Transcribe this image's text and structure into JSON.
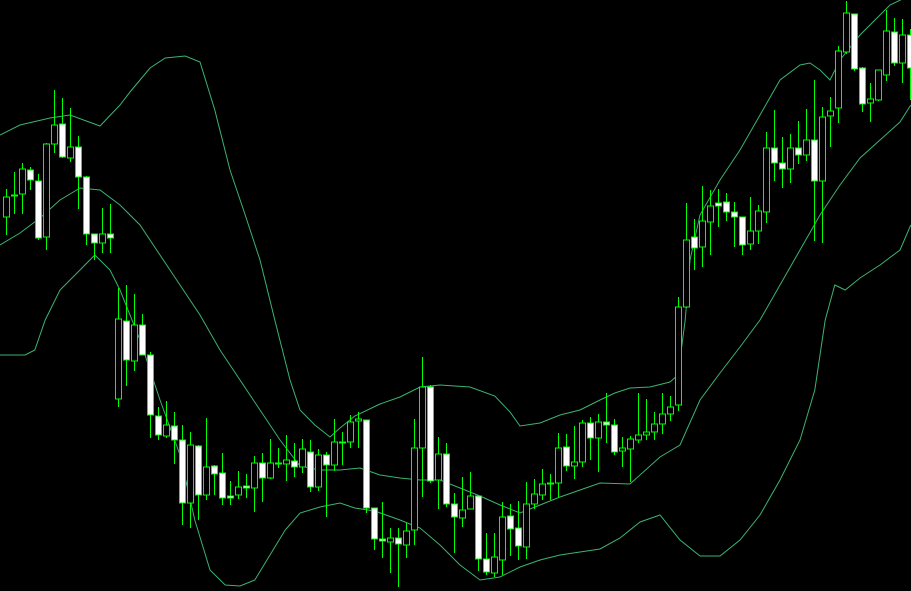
{
  "chart_data": {
    "type": "candlestick",
    "title": "",
    "xlabel": "",
    "ylabel": "",
    "grid": false,
    "indicator": "bollinger-bands",
    "colors": {
      "background": "#000000",
      "candle": "#00ff00",
      "bull_body": "#000000",
      "bear_body": "#ffffff",
      "bands": "#3cb371"
    },
    "ohlc_format": [
      "open",
      "high",
      "low",
      "close"
    ],
    "candles": [
      [
        383,
        411,
        365,
        403
      ],
      [
        404,
        428,
        386,
        405
      ],
      [
        406,
        437,
        386,
        431
      ],
      [
        430,
        433,
        410,
        420
      ],
      [
        419,
        426,
        360,
        362
      ],
      [
        363,
        457,
        350,
        456
      ],
      [
        456,
        510,
        447,
        475
      ],
      [
        476,
        502,
        442,
        443
      ],
      [
        442,
        492,
        438,
        453
      ],
      [
        453,
        464,
        391,
        423
      ],
      [
        423,
        424,
        355,
        366
      ],
      [
        366,
        366,
        340,
        357
      ],
      [
        357,
        392,
        347,
        366
      ],
      [
        366,
        396,
        347,
        362
      ],
      [
        201,
        312,
        193,
        281
      ],
      [
        279,
        315,
        214,
        240
      ],
      [
        239,
        306,
        229,
        275
      ],
      [
        275,
        286,
        245,
        245
      ],
      [
        245,
        248,
        162,
        185
      ],
      [
        184,
        193,
        160,
        165
      ],
      [
        164,
        199,
        162,
        175
      ],
      [
        174,
        188,
        136,
        160
      ],
      [
        160,
        175,
        75,
        97
      ],
      [
        97,
        168,
        72,
        155
      ],
      [
        154,
        155,
        80,
        105
      ],
      [
        105,
        182,
        100,
        133
      ],
      [
        134,
        135,
        105,
        126
      ],
      [
        127,
        147,
        95,
        102
      ],
      [
        104,
        119,
        95,
        102
      ],
      [
        105,
        129,
        101,
        113
      ],
      [
        114,
        126,
        102,
        112
      ],
      [
        112,
        144,
        88,
        137
      ],
      [
        137,
        147,
        98,
        122
      ],
      [
        122,
        161,
        121,
        137
      ],
      [
        137,
        152,
        132,
        137
      ],
      [
        136,
        165,
        119,
        140
      ],
      [
        139,
        157,
        123,
        133
      ],
      [
        133,
        161,
        127,
        151
      ],
      [
        148,
        160,
        108,
        113
      ],
      [
        113,
        151,
        109,
        145
      ],
      [
        145,
        148,
        83,
        135
      ],
      [
        135,
        181,
        129,
        158
      ],
      [
        158,
        168,
        135,
        158
      ],
      [
        158,
        185,
        152,
        178
      ],
      [
        179,
        188,
        152,
        181
      ],
      [
        180,
        180,
        87,
        92
      ],
      [
        92,
        92,
        50,
        61
      ],
      [
        61,
        98,
        42,
        59
      ],
      [
        58,
        72,
        27,
        62
      ],
      [
        62,
        72,
        13,
        56
      ],
      [
        55,
        77,
        42,
        69
      ],
      [
        70,
        181,
        55,
        152
      ],
      [
        152,
        243,
        103,
        213
      ],
      [
        213,
        215,
        117,
        119
      ],
      [
        120,
        163,
        91,
        146
      ],
      [
        146,
        157,
        93,
        96
      ],
      [
        96,
        107,
        47,
        83
      ],
      [
        82,
        123,
        73,
        90
      ],
      [
        91,
        128,
        91,
        104
      ],
      [
        104,
        104,
        29,
        41
      ],
      [
        41,
        67,
        25,
        28
      ],
      [
        27,
        67,
        23,
        43
      ],
      [
        40,
        98,
        25,
        83
      ],
      [
        84,
        96,
        44,
        71
      ],
      [
        72,
        99,
        40,
        54
      ],
      [
        53,
        118,
        41,
        96
      ],
      [
        96,
        121,
        91,
        106
      ],
      [
        105,
        131,
        100,
        116
      ],
      [
        117,
        126,
        100,
        117
      ],
      [
        117,
        167,
        103,
        152
      ],
      [
        153,
        166,
        129,
        134
      ],
      [
        134,
        174,
        121,
        138
      ],
      [
        138,
        180,
        133,
        177
      ],
      [
        177,
        183,
        140,
        162
      ],
      [
        162,
        186,
        128,
        178
      ],
      [
        178,
        207,
        157,
        175
      ],
      [
        175,
        181,
        145,
        148
      ],
      [
        149,
        163,
        133,
        152
      ],
      [
        151,
        164,
        118,
        161
      ],
      [
        160,
        207,
        157,
        165
      ],
      [
        165,
        201,
        160,
        168
      ],
      [
        168,
        188,
        160,
        176
      ],
      [
        176,
        207,
        166,
        186
      ],
      [
        186,
        204,
        179,
        193
      ],
      [
        195,
        303,
        189,
        293
      ],
      [
        293,
        397,
        292,
        360
      ],
      [
        363,
        381,
        330,
        352
      ],
      [
        353,
        414,
        333,
        379
      ],
      [
        378,
        410,
        345,
        394
      ],
      [
        397,
        411,
        373,
        394
      ],
      [
        398,
        407,
        379,
        388
      ],
      [
        388,
        398,
        353,
        383
      ],
      [
        383,
        383,
        345,
        355
      ],
      [
        356,
        403,
        350,
        369
      ],
      [
        369,
        395,
        356,
        389
      ],
      [
        388,
        468,
        377,
        452
      ],
      [
        452,
        490,
        419,
        437
      ],
      [
        437,
        463,
        412,
        431
      ],
      [
        431,
        466,
        417,
        452
      ],
      [
        452,
        479,
        436,
        445
      ],
      [
        445,
        491,
        439,
        460
      ],
      [
        460,
        520,
        359,
        419
      ],
      [
        419,
        493,
        357,
        483
      ],
      [
        484,
        503,
        453,
        489
      ],
      [
        492,
        554,
        477,
        549
      ],
      [
        548,
        599,
        546,
        587
      ],
      [
        586,
        586,
        529,
        531
      ],
      [
        532,
        533,
        488,
        496
      ],
      [
        497,
        517,
        478,
        501
      ],
      [
        500,
        530,
        499,
        530
      ],
      [
        525,
        590,
        519,
        569
      ],
      [
        568,
        582,
        534,
        537
      ],
      [
        537,
        581,
        517,
        565
      ],
      [
        565,
        571,
        500,
        532
      ]
    ],
    "bands": {
      "upper": [
        [
          -0.75,
          465
        ],
        [
          1.75,
          475
        ],
        [
          5.5,
          482
        ],
        [
          8,
          485
        ],
        [
          11.75,
          474
        ],
        [
          14.25,
          495
        ],
        [
          15.5,
          508
        ],
        [
          18,
          532
        ],
        [
          19.9,
          542
        ],
        [
          22.4,
          544
        ],
        [
          24.25,
          538
        ],
        [
          26.1,
          490
        ],
        [
          28,
          430
        ],
        [
          29.9,
          385
        ],
        [
          31.75,
          340
        ],
        [
          33.6,
          280
        ],
        [
          35.5,
          220
        ],
        [
          36.75,
          190
        ],
        [
          38.6,
          175
        ],
        [
          40.5,
          163
        ],
        [
          41.75,
          172
        ],
        [
          43.6,
          184
        ],
        [
          46.75,
          196
        ],
        [
          49.25,
          203
        ],
        [
          51.75,
          213
        ],
        [
          54.25,
          215
        ],
        [
          58,
          213
        ],
        [
          61.1,
          204
        ],
        [
          63,
          188
        ],
        [
          64.25,
          174
        ],
        [
          66.75,
          177
        ],
        [
          69.25,
          185
        ],
        [
          71.75,
          190
        ],
        [
          74.25,
          200
        ],
        [
          76.1,
          207
        ],
        [
          78,
          212
        ],
        [
          80.5,
          213
        ],
        [
          83,
          218
        ],
        [
          84,
          225
        ],
        [
          84.9,
          280
        ],
        [
          85.5,
          340
        ],
        [
          86.75,
          385
        ],
        [
          89.25,
          420
        ],
        [
          91.75,
          450
        ],
        [
          94.25,
          485
        ],
        [
          96.75,
          520
        ],
        [
          99.25,
          535
        ],
        [
          100.5,
          537
        ],
        [
          101.75,
          530
        ],
        [
          103,
          520
        ],
        [
          104.25,
          540
        ],
        [
          106.75,
          565
        ],
        [
          109.25,
          585
        ],
        [
          110.5,
          595
        ],
        [
          113.1,
          605
        ]
      ],
      "middle": [
        [
          -0.75,
          355
        ],
        [
          1.75,
          367
        ],
        [
          4.25,
          382
        ],
        [
          6.75,
          400
        ],
        [
          9.25,
          412
        ],
        [
          11.75,
          410
        ],
        [
          14.25,
          395
        ],
        [
          16.75,
          375
        ],
        [
          19.25,
          345
        ],
        [
          21.75,
          315
        ],
        [
          24.25,
          285
        ],
        [
          26.75,
          250
        ],
        [
          29.25,
          220
        ],
        [
          31.75,
          190
        ],
        [
          34.25,
          160
        ],
        [
          36.75,
          134
        ],
        [
          39.25,
          130
        ],
        [
          41.75,
          130
        ],
        [
          44.25,
          132
        ],
        [
          46.75,
          125
        ],
        [
          49.25,
          122
        ],
        [
          51.75,
          120
        ],
        [
          54.25,
          120
        ],
        [
          56.75,
          112
        ],
        [
          59.25,
          104
        ],
        [
          61.75,
          95
        ],
        [
          64.25,
          87
        ],
        [
          66.75,
          95
        ],
        [
          69.25,
          103
        ],
        [
          71.75,
          110
        ],
        [
          74.25,
          117
        ],
        [
          78,
          116
        ],
        [
          81.75,
          143
        ],
        [
          84.25,
          155
        ],
        [
          86.75,
          200
        ],
        [
          89.25,
          227
        ],
        [
          91.75,
          253
        ],
        [
          94.25,
          280
        ],
        [
          96.75,
          315
        ],
        [
          99.25,
          350
        ],
        [
          101.75,
          385
        ],
        [
          104.25,
          415
        ],
        [
          106.75,
          442
        ],
        [
          109.25,
          460
        ],
        [
          111.75,
          478
        ],
        [
          113.1,
          495
        ]
      ],
      "lower": [
        [
          -0.75,
          245
        ],
        [
          2.4,
          245
        ],
        [
          3.6,
          250
        ],
        [
          4.9,
          280
        ],
        [
          6.75,
          310
        ],
        [
          9.25,
          330
        ],
        [
          11.1,
          345
        ],
        [
          13,
          330
        ],
        [
          14.25,
          310
        ],
        [
          16.75,
          260
        ],
        [
          19.25,
          200
        ],
        [
          21.75,
          145
        ],
        [
          23.6,
          80
        ],
        [
          25.5,
          30
        ],
        [
          27.4,
          15
        ],
        [
          29.25,
          14
        ],
        [
          31.1,
          20
        ],
        [
          33,
          45
        ],
        [
          34.9,
          70
        ],
        [
          36.75,
          87
        ],
        [
          39.25,
          93
        ],
        [
          41.75,
          97
        ],
        [
          43.6,
          92
        ],
        [
          46.1,
          89
        ],
        [
          49.25,
          80
        ],
        [
          51.75,
          72
        ],
        [
          54.25,
          55
        ],
        [
          56.75,
          35
        ],
        [
          59.25,
          20
        ],
        [
          61.75,
          23
        ],
        [
          64.25,
          33
        ],
        [
          66.75,
          40
        ],
        [
          69.25,
          45
        ],
        [
          74.25,
          51
        ],
        [
          76.75,
          62
        ],
        [
          79.25,
          78
        ],
        [
          81.75,
          85
        ],
        [
          84.25,
          60
        ],
        [
          86.75,
          44
        ],
        [
          89.25,
          44
        ],
        [
          91.75,
          60
        ],
        [
          94.25,
          85
        ],
        [
          96.75,
          120
        ],
        [
          99.25,
          160
        ],
        [
          101.1,
          210
        ],
        [
          102.4,
          280
        ],
        [
          103.6,
          315
        ],
        [
          104.9,
          310
        ],
        [
          106.75,
          322
        ],
        [
          109.25,
          335
        ],
        [
          111.75,
          350
        ],
        [
          113.1,
          375
        ]
      ]
    }
  }
}
